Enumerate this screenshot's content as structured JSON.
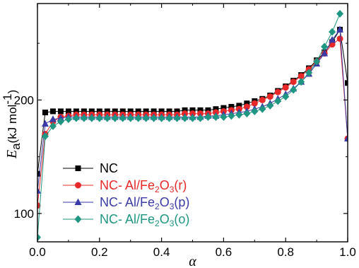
{
  "chart_data": {
    "type": "line",
    "title": "",
    "xlabel": "α",
    "ylabel": {
      "symbol": "E",
      "subscript": "a",
      "unit_text": "(kJ mol",
      "unit_exp": "-1",
      "unit_close": ")"
    },
    "xlim": [
      0.0,
      1.0
    ],
    "ylim": [
      75,
      285
    ],
    "x_ticks": [
      "0.0",
      "0.2",
      "0.4",
      "0.6",
      "0.8",
      "1.0"
    ],
    "y_ticks": [
      "100",
      "200"
    ],
    "legend_position": "bottom-left",
    "series": [
      {
        "name": "NC",
        "legend": {
          "prefix": "NC",
          "mid": "",
          "sub": "",
          "tail": ""
        },
        "color": "#000000",
        "line_color": "#000000",
        "marker": "square",
        "x": [
          0.0,
          0.025,
          0.05,
          0.075,
          0.1,
          0.125,
          0.15,
          0.175,
          0.2,
          0.225,
          0.25,
          0.275,
          0.3,
          0.325,
          0.35,
          0.375,
          0.4,
          0.425,
          0.45,
          0.475,
          0.5,
          0.525,
          0.55,
          0.575,
          0.6,
          0.625,
          0.65,
          0.675,
          0.7,
          0.725,
          0.75,
          0.775,
          0.8,
          0.825,
          0.85,
          0.875,
          0.9,
          0.925,
          0.95,
          0.975,
          1.0
        ],
        "y": [
          135,
          189,
          190,
          190,
          190,
          190,
          190,
          190,
          190,
          190,
          190,
          190,
          190,
          190,
          190,
          190,
          190,
          190,
          190,
          191,
          191,
          191,
          191,
          192,
          193,
          194,
          195,
          197,
          199,
          201,
          204,
          208,
          212,
          217,
          222,
          228,
          235,
          242,
          251,
          262,
          215
        ]
      },
      {
        "name": "NC- Al/Fe2O3(r)",
        "legend": {
          "prefix": "NC- Al/Fe",
          "mid": "2",
          "sub": "O",
          "tail": "3(r)"
        },
        "color": "#e82828",
        "line_color": "#e82828",
        "marker": "circle",
        "x": [
          0.0,
          0.025,
          0.05,
          0.075,
          0.1,
          0.125,
          0.15,
          0.175,
          0.2,
          0.225,
          0.25,
          0.275,
          0.3,
          0.325,
          0.35,
          0.375,
          0.4,
          0.425,
          0.45,
          0.475,
          0.5,
          0.525,
          0.55,
          0.575,
          0.6,
          0.625,
          0.65,
          0.675,
          0.7,
          0.725,
          0.75,
          0.775,
          0.8,
          0.825,
          0.85,
          0.875,
          0.9,
          0.925,
          0.95,
          0.975,
          1.0
        ],
        "y": [
          107,
          170,
          181,
          185,
          186,
          187,
          187,
          187,
          187,
          187,
          187,
          187,
          187,
          187,
          187,
          187,
          187,
          187,
          187,
          188,
          188,
          188,
          188,
          189,
          190,
          191,
          192,
          194,
          197,
          200,
          203,
          207,
          211,
          216,
          221,
          227,
          234,
          241,
          249,
          254,
          166
        ]
      },
      {
        "name": "NC- Al/Fe2O3(p)",
        "legend": {
          "prefix": "NC- Al/Fe",
          "mid": "2",
          "sub": "O",
          "tail": "3(p)"
        },
        "color": "#3a3aa8",
        "line_color": "#3a3aa8",
        "marker": "triangle",
        "x": [
          0.0,
          0.025,
          0.05,
          0.075,
          0.1,
          0.125,
          0.15,
          0.175,
          0.2,
          0.225,
          0.25,
          0.275,
          0.3,
          0.325,
          0.35,
          0.375,
          0.4,
          0.425,
          0.45,
          0.475,
          0.5,
          0.525,
          0.55,
          0.575,
          0.6,
          0.625,
          0.65,
          0.675,
          0.7,
          0.725,
          0.75,
          0.775,
          0.8,
          0.825,
          0.85,
          0.875,
          0.9,
          0.925,
          0.95,
          0.975,
          1.0
        ],
        "y": [
          120,
          179,
          183,
          184,
          185,
          185,
          185,
          185,
          185,
          185,
          185,
          185,
          185,
          185,
          185,
          185,
          185,
          185,
          185,
          185,
          185,
          185,
          186,
          186,
          187,
          188,
          189,
          190,
          192,
          194,
          197,
          201,
          205,
          210,
          216,
          223,
          232,
          241,
          253,
          262,
          166
        ]
      },
      {
        "name": "NC- Al/Fe2O3(o)",
        "legend": {
          "prefix": "NC- Al/Fe",
          "mid": "2",
          "sub": "O",
          "tail": "3(o)"
        },
        "color": "#1e9682",
        "line_color": "#1e9682",
        "marker": "diamond",
        "x": [
          0.0,
          0.025,
          0.05,
          0.075,
          0.1,
          0.125,
          0.15,
          0.175,
          0.2,
          0.225,
          0.25,
          0.275,
          0.3,
          0.325,
          0.35,
          0.375,
          0.4,
          0.425,
          0.45,
          0.475,
          0.5,
          0.525,
          0.55,
          0.575,
          0.6,
          0.625,
          0.65,
          0.675,
          0.7,
          0.725,
          0.75,
          0.775,
          0.8,
          0.825,
          0.85,
          0.875,
          0.9,
          0.925,
          0.95,
          0.975
        ],
        "y": [
          79,
          168,
          177,
          181,
          183,
          184,
          184,
          184,
          184,
          184,
          184,
          184,
          184,
          184,
          184,
          184,
          184,
          184,
          184,
          184,
          184,
          184,
          185,
          185,
          185,
          186,
          187,
          188,
          190,
          192,
          195,
          199,
          203,
          209,
          216,
          224,
          234,
          247,
          260,
          276
        ]
      }
    ]
  }
}
